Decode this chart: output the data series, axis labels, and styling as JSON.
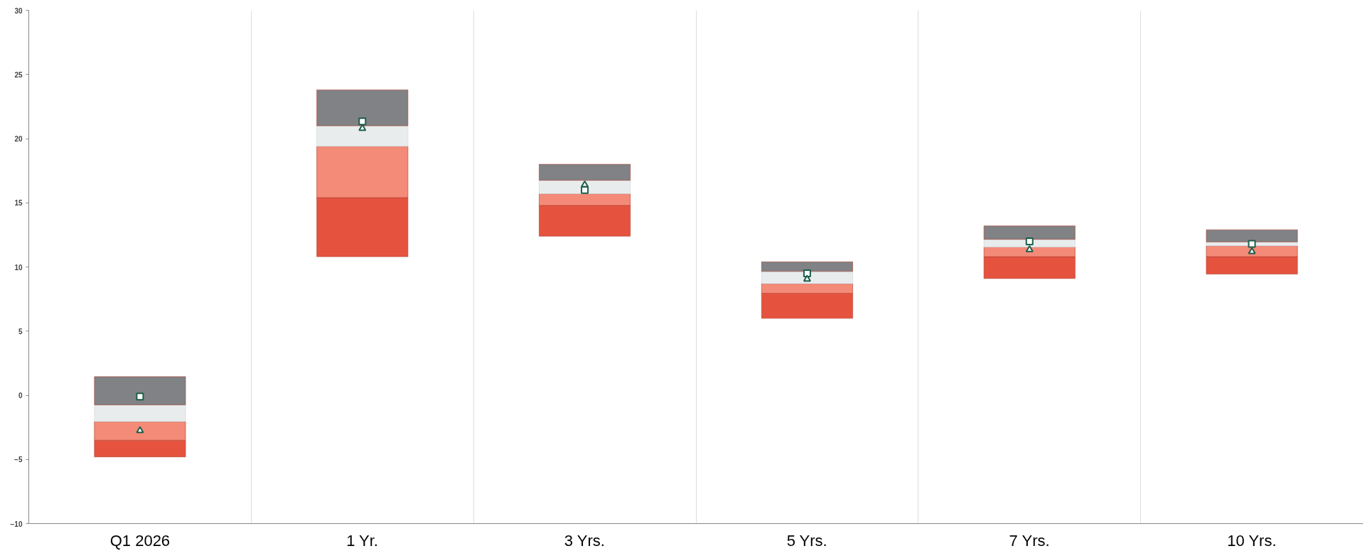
{
  "chart_data": {
    "type": "bar",
    "categories": [
      "Q1 2026",
      "1 Yr.",
      "3 Yrs.",
      "5 Yrs.",
      "7 Yrs.",
      "10 Yrs."
    ],
    "series": [
      {
        "color": "#e5533f",
        "base": [
          -4.8,
          10.8,
          12.4,
          6.0,
          9.1,
          9.45
        ],
        "values": [
          1.3,
          4.6,
          2.4,
          1.95,
          1.7,
          1.35
        ]
      },
      {
        "color": "#f48a78",
        "base": [
          -3.5,
          15.4,
          14.8,
          7.95,
          10.8,
          10.8
        ],
        "values": [
          1.45,
          4.0,
          0.9,
          0.75,
          0.75,
          0.85
        ]
      },
      {
        "color": "#e8eced",
        "base": [
          -2.05,
          19.4,
          15.7,
          8.7,
          11.55,
          11.65
        ],
        "values": [
          1.3,
          1.6,
          1.05,
          0.95,
          0.6,
          0.3
        ]
      },
      {
        "color": "#808285",
        "base": [
          -0.75,
          21.0,
          16.75,
          9.65,
          12.15,
          11.95
        ],
        "values": [
          2.2,
          2.8,
          1.25,
          0.75,
          1.05,
          0.95
        ]
      },
      {
        "type": "scatter",
        "marker": "square",
        "color": "#1d5e4a",
        "x": [
          "Q1 2026",
          "1 Yr.",
          "3 Yrs.",
          "5 Yrs.",
          "7 Yrs.",
          "10 Yrs."
        ],
        "values": [
          -0.1,
          21.35,
          16.0,
          9.5,
          12.0,
          11.8
        ]
      },
      {
        "type": "scatter",
        "marker": "triangle",
        "color": "#1d5e4a",
        "x": [
          "Q1 2026",
          "1 Yr.",
          "3 Yrs.",
          "5 Yrs.",
          "7 Yrs.",
          "10 Yrs."
        ],
        "values": [
          -2.75,
          20.8,
          16.4,
          9.05,
          11.35,
          11.2
        ]
      }
    ],
    "ylim": [
      -10,
      30
    ],
    "yticks": [
      -10,
      -5,
      0,
      5,
      10,
      15,
      20,
      25,
      30
    ],
    "grid": "x"
  }
}
